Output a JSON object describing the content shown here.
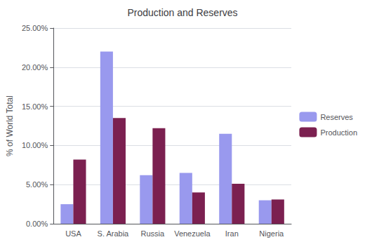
{
  "chart_data": {
    "type": "bar",
    "title": "Production and Reserves",
    "ylabel": "% of World Total",
    "categories": [
      "USA",
      "S. Arabia",
      "Russia",
      "Venezuela",
      "Iran",
      "Nigeria"
    ],
    "series": [
      {
        "name": "Reserves",
        "color": "#9999EE",
        "values": [
          0.025,
          0.22,
          0.062,
          0.065,
          0.115,
          0.03
        ]
      },
      {
        "name": "Production",
        "color": "#7B2050",
        "values": [
          0.082,
          0.135,
          0.122,
          0.04,
          0.051,
          0.031
        ]
      }
    ],
    "ylim": [
      0,
      0.25
    ],
    "yticks": [
      {
        "value": 0.0,
        "label": "0.00%"
      },
      {
        "value": 0.05,
        "label": "5.00%"
      },
      {
        "value": 0.1,
        "label": "10.00%"
      },
      {
        "value": 0.15,
        "label": "15.00%"
      },
      {
        "value": 0.2,
        "label": "20.00%"
      },
      {
        "value": 0.25,
        "label": "25.00%"
      }
    ],
    "grid": true,
    "legend": "right"
  }
}
